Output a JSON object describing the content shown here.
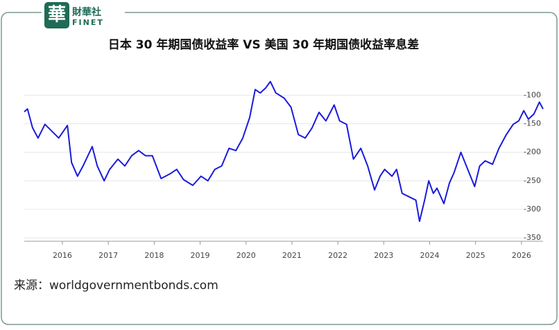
{
  "logo": {
    "mark": "華",
    "name": "財華社",
    "sub": "FINET"
  },
  "chart_data": {
    "type": "line",
    "title": "日本 30 年期国债收益率 VS 美国 30 年期国债收益率息差",
    "source": "来源：worldgovernmentbonds.com",
    "x": [
      2015.17,
      2015.24,
      2015.35,
      2015.47,
      2015.62,
      2015.77,
      2015.92,
      2016.11,
      2016.2,
      2016.33,
      2016.45,
      2016.65,
      2016.76,
      2016.91,
      2017.03,
      2017.21,
      2017.36,
      2017.51,
      2017.66,
      2017.81,
      2017.96,
      2018.15,
      2018.34,
      2018.49,
      2018.64,
      2018.84,
      2019.02,
      2019.17,
      2019.32,
      2019.47,
      2019.63,
      2019.78,
      2019.93,
      2020.08,
      2020.2,
      2020.31,
      2020.43,
      2020.53,
      2020.65,
      2020.83,
      2020.98,
      2021.14,
      2021.29,
      2021.44,
      2021.59,
      2021.74,
      2021.92,
      2022.04,
      2022.19,
      2022.34,
      2022.5,
      2022.65,
      2022.8,
      2022.92,
      2023.02,
      2023.18,
      2023.28,
      2023.4,
      2023.55,
      2023.7,
      2023.78,
      2023.89,
      2023.98,
      2024.08,
      2024.16,
      2024.31,
      2024.43,
      2024.53,
      2024.68,
      2024.83,
      2024.98,
      2025.09,
      2025.21,
      2025.37,
      2025.51,
      2025.67,
      2025.82,
      2025.94,
      2026.05,
      2026.15,
      2026.27,
      2026.39,
      2026.47
    ],
    "series": [
      {
        "color": "#1a1adc",
        "values": [
          -129,
          -124,
          -157,
          -175,
          -151,
          -163,
          -175,
          -153,
          -218,
          -242,
          -224,
          -190,
          -224,
          -250,
          -230,
          -212,
          -224,
          -206,
          -197,
          -206,
          -206,
          -246,
          -238,
          -230,
          -248,
          -258,
          -242,
          -250,
          -230,
          -224,
          -193,
          -197,
          -175,
          -139,
          -90,
          -96,
          -87,
          -76,
          -96,
          -105,
          -121,
          -169,
          -175,
          -157,
          -130,
          -145,
          -117,
          -145,
          -151,
          -212,
          -193,
          -224,
          -266,
          -242,
          -230,
          -242,
          -230,
          -272,
          -278,
          -284,
          -321,
          -284,
          -250,
          -272,
          -263,
          -290,
          -254,
          -236,
          -200,
          -230,
          -260,
          -224,
          -215,
          -221,
          -193,
          -169,
          -151,
          -145,
          -127,
          -142,
          -133,
          -112,
          -124
        ]
      }
    ],
    "xlim": [
      2015.17,
      2026.47
    ],
    "xticks": [
      2016,
      2017,
      2018,
      2019,
      2020,
      2021,
      2022,
      2023,
      2024,
      2025,
      2026
    ],
    "ylim": [
      -356,
      -57
    ],
    "yticks": [
      -100,
      -150,
      -200,
      -250,
      -300,
      -350
    ],
    "grid": true
  }
}
